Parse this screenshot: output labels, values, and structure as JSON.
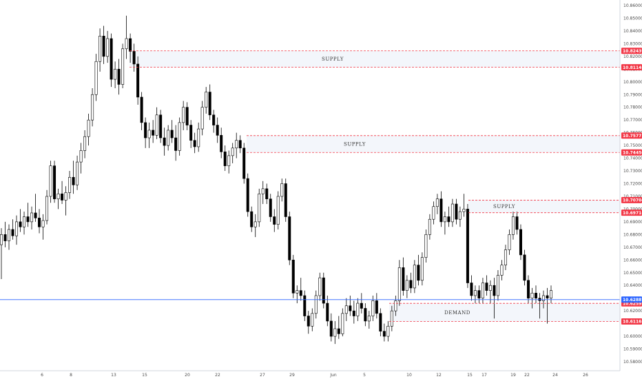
{
  "chart_data": {
    "type": "candlestick",
    "ylim": [
      10.576,
      10.866
    ],
    "y_ticks": [
      {
        "value": 10.86,
        "label": "10.86000"
      },
      {
        "value": 10.85,
        "label": "10.85000"
      },
      {
        "value": 10.84,
        "label": "10.84000"
      },
      {
        "value": 10.83,
        "label": "10.83000"
      },
      {
        "value": 10.82,
        "label": "10.82000"
      },
      {
        "value": 10.81,
        "label": "10.81000"
      },
      {
        "value": 10.8,
        "label": "10.80000"
      },
      {
        "value": 10.79,
        "label": "10.79000"
      },
      {
        "value": 10.78,
        "label": "10.78000"
      },
      {
        "value": 10.77,
        "label": "10.77000"
      },
      {
        "value": 10.76,
        "label": "10.76000"
      },
      {
        "value": 10.75,
        "label": "10.75000"
      },
      {
        "value": 10.74,
        "label": "10.74000"
      },
      {
        "value": 10.73,
        "label": "10.73000"
      },
      {
        "value": 10.72,
        "label": "10.72000"
      },
      {
        "value": 10.71,
        "label": "10.71000"
      },
      {
        "value": 10.7,
        "label": "10.70000"
      },
      {
        "value": 10.69,
        "label": "10.69000"
      },
      {
        "value": 10.68,
        "label": "10.68000"
      },
      {
        "value": 10.67,
        "label": "10.67000"
      },
      {
        "value": 10.66,
        "label": "10.66000"
      },
      {
        "value": 10.65,
        "label": "10.65000"
      },
      {
        "value": 10.64,
        "label": "10.64000"
      },
      {
        "value": 10.62,
        "label": "10.62000"
      },
      {
        "value": 10.6,
        "label": "10.60000"
      },
      {
        "value": 10.59,
        "label": "10.59000"
      },
      {
        "value": 10.58,
        "label": "10.58000"
      }
    ],
    "x_ticks": [
      "6",
      "8",
      "13",
      "15",
      "20",
      "22",
      "27",
      "29",
      "Jun",
      "5",
      "10",
      "12",
      "15",
      "17",
      "19",
      "22",
      "24",
      "26"
    ],
    "levels": [
      {
        "value": 10.82439,
        "label": "10.82439",
        "style": "dashed",
        "color": "#f23645"
      },
      {
        "value": 10.81148,
        "label": "10.81148",
        "style": "dashed",
        "color": "#f23645"
      },
      {
        "value": 10.75775,
        "label": "10.75775",
        "style": "dashed",
        "color": "#f23645"
      },
      {
        "value": 10.7445,
        "label": "10.74450",
        "style": "dashed",
        "color": "#f23645"
      },
      {
        "value": 10.70704,
        "label": "10.70704",
        "style": "dashed",
        "color": "#f23645"
      },
      {
        "value": 10.69716,
        "label": "10.69716",
        "style": "dashed",
        "color": "#f23645"
      },
      {
        "value": 10.62592,
        "label": "10.62592",
        "style": "dashed",
        "color": "#f23645"
      },
      {
        "value": 10.61168,
        "label": "10.61168",
        "style": "dashed",
        "color": "#f23645"
      },
      {
        "value": 10.62887,
        "label": "10.62887",
        "style": "solid",
        "color": "#2962ff"
      }
    ],
    "zones": [
      {
        "label": "SUPPLY",
        "top": 10.82439,
        "bottom": 10.81148
      },
      {
        "label": "SUPPLY",
        "top": 10.75775,
        "bottom": 10.7445
      },
      {
        "label": "SUPPLY",
        "top": 10.70704,
        "bottom": 10.69716
      },
      {
        "label": "DEMAND",
        "top": 10.62592,
        "bottom": 10.61168
      }
    ],
    "ohlc": [
      [
        10.672,
        10.685,
        10.645,
        10.68
      ],
      [
        10.68,
        10.69,
        10.67,
        10.675
      ],
      [
        10.675,
        10.688,
        10.668,
        10.684
      ],
      [
        10.684,
        10.692,
        10.676,
        10.679
      ],
      [
        10.679,
        10.695,
        10.672,
        10.69
      ],
      [
        10.69,
        10.7,
        10.682,
        10.686
      ],
      [
        10.686,
        10.698,
        10.68,
        10.694
      ],
      [
        10.694,
        10.705,
        10.686,
        10.69
      ],
      [
        10.69,
        10.702,
        10.684,
        10.697
      ],
      [
        10.697,
        10.712,
        10.69,
        10.693
      ],
      [
        10.693,
        10.7,
        10.681,
        10.686
      ],
      [
        10.686,
        10.696,
        10.676,
        10.691
      ],
      [
        10.691,
        10.715,
        10.688,
        10.71
      ],
      [
        10.71,
        10.738,
        10.705,
        10.734
      ],
      [
        10.734,
        10.738,
        10.705,
        10.708
      ],
      [
        10.708,
        10.716,
        10.7,
        10.712
      ],
      [
        10.712,
        10.722,
        10.704,
        10.707
      ],
      [
        10.707,
        10.718,
        10.695,
        10.713
      ],
      [
        10.713,
        10.73,
        10.708,
        10.725
      ],
      [
        10.725,
        10.738,
        10.712,
        10.719
      ],
      [
        10.719,
        10.742,
        10.715,
        10.737
      ],
      [
        10.737,
        10.752,
        10.728,
        10.746
      ],
      [
        10.746,
        10.762,
        10.74,
        10.757
      ],
      [
        10.757,
        10.775,
        10.75,
        10.77
      ],
      [
        10.77,
        10.795,
        10.765,
        10.79
      ],
      [
        10.79,
        10.822,
        10.785,
        10.816
      ],
      [
        10.816,
        10.842,
        10.808,
        10.836
      ],
      [
        10.836,
        10.844,
        10.814,
        10.82
      ],
      [
        10.82,
        10.84,
        10.815,
        10.834
      ],
      [
        10.834,
        10.838,
        10.796,
        10.802
      ],
      [
        10.802,
        10.816,
        10.795,
        10.81
      ],
      [
        10.81,
        10.818,
        10.79,
        10.798
      ],
      [
        10.798,
        10.83,
        10.795,
        10.826
      ],
      [
        10.826,
        10.852,
        10.818,
        10.834
      ],
      [
        10.834,
        10.838,
        10.815,
        10.824
      ],
      [
        10.824,
        10.83,
        10.808,
        10.814
      ],
      [
        10.814,
        10.82,
        10.782,
        10.788
      ],
      [
        10.788,
        10.792,
        10.762,
        10.768
      ],
      [
        10.768,
        10.772,
        10.748,
        10.756
      ],
      [
        10.756,
        10.768,
        10.748,
        10.762
      ],
      [
        10.762,
        10.77,
        10.752,
        10.758
      ],
      [
        10.758,
        10.78,
        10.755,
        10.774
      ],
      [
        10.774,
        10.778,
        10.752,
        10.756
      ],
      [
        10.756,
        10.764,
        10.742,
        10.75
      ],
      [
        10.75,
        10.766,
        10.746,
        10.762
      ],
      [
        10.762,
        10.77,
        10.752,
        10.756
      ],
      [
        10.756,
        10.766,
        10.738,
        10.746
      ],
      [
        10.746,
        10.772,
        10.742,
        10.768
      ],
      [
        10.768,
        10.785,
        10.762,
        10.78
      ],
      [
        10.78,
        10.784,
        10.762,
        10.766
      ],
      [
        10.766,
        10.77,
        10.748,
        10.754
      ],
      [
        10.754,
        10.76,
        10.744,
        10.749
      ],
      [
        10.749,
        10.768,
        10.745,
        10.763
      ],
      [
        10.763,
        10.785,
        10.758,
        10.78
      ],
      [
        10.78,
        10.796,
        10.775,
        10.792
      ],
      [
        10.792,
        10.798,
        10.77,
        10.774
      ],
      [
        10.774,
        10.778,
        10.76,
        10.766
      ],
      [
        10.766,
        10.772,
        10.752,
        10.758
      ],
      [
        10.758,
        10.764,
        10.74,
        10.745
      ],
      [
        10.745,
        10.75,
        10.73,
        10.734
      ],
      [
        10.734,
        10.746,
        10.728,
        10.742
      ],
      [
        10.742,
        10.752,
        10.736,
        10.748
      ],
      [
        10.748,
        10.76,
        10.74,
        10.754
      ],
      [
        10.754,
        10.758,
        10.744,
        10.748
      ],
      [
        10.748,
        10.752,
        10.72,
        10.724
      ],
      [
        10.724,
        10.728,
        10.694,
        10.698
      ],
      [
        10.698,
        10.702,
        10.682,
        10.686
      ],
      [
        10.686,
        10.696,
        10.678,
        10.69
      ],
      [
        10.69,
        10.716,
        10.686,
        10.712
      ],
      [
        10.712,
        10.722,
        10.704,
        10.716
      ],
      [
        10.716,
        10.72,
        10.704,
        10.708
      ],
      [
        10.708,
        10.712,
        10.69,
        10.694
      ],
      [
        10.694,
        10.7,
        10.682,
        10.688
      ],
      [
        10.688,
        10.714,
        10.684,
        10.71
      ],
      [
        10.71,
        10.724,
        10.706,
        10.72
      ],
      [
        10.72,
        10.724,
        10.69,
        10.694
      ],
      [
        10.694,
        10.698,
        10.656,
        10.66
      ],
      [
        10.66,
        10.664,
        10.63,
        10.634
      ],
      [
        10.634,
        10.64,
        10.626,
        10.636
      ],
      [
        10.636,
        10.646,
        10.628,
        10.632
      ],
      [
        10.632,
        10.636,
        10.612,
        10.616
      ],
      [
        10.616,
        10.62,
        10.602,
        10.608
      ],
      [
        10.608,
        10.622,
        10.604,
        10.618
      ],
      [
        10.618,
        10.636,
        10.614,
        10.632
      ],
      [
        10.632,
        10.65,
        10.628,
        10.646
      ],
      [
        10.646,
        10.65,
        10.622,
        10.626
      ],
      [
        10.626,
        10.632,
        10.608,
        10.612
      ],
      [
        10.612,
        10.618,
        10.596,
        10.6
      ],
      [
        10.6,
        10.612,
        10.594,
        10.606
      ],
      [
        10.606,
        10.616,
        10.598,
        10.602
      ],
      [
        10.602,
        10.622,
        10.6,
        10.618
      ],
      [
        10.618,
        10.63,
        10.612,
        10.624
      ],
      [
        10.624,
        10.632,
        10.616,
        10.62
      ],
      [
        10.62,
        10.628,
        10.61,
        10.616
      ],
      [
        10.616,
        10.63,
        10.612,
        10.626
      ],
      [
        10.626,
        10.634,
        10.618,
        10.622
      ],
      [
        10.622,
        10.626,
        10.608,
        10.612
      ],
      [
        10.612,
        10.62,
        10.606,
        10.616
      ],
      [
        10.616,
        10.632,
        10.612,
        10.628
      ],
      [
        10.628,
        10.634,
        10.614,
        10.618
      ],
      [
        10.618,
        10.622,
        10.6,
        10.604
      ],
      [
        10.604,
        10.61,
        10.596,
        10.6
      ],
      [
        10.6,
        10.612,
        10.596,
        10.608
      ],
      [
        10.608,
        10.624,
        10.604,
        10.62
      ],
      [
        10.62,
        10.632,
        10.616,
        10.628
      ],
      [
        10.628,
        10.66,
        10.624,
        10.654
      ],
      [
        10.654,
        10.662,
        10.632,
        10.636
      ],
      [
        10.636,
        10.648,
        10.63,
        10.644
      ],
      [
        10.644,
        10.65,
        10.634,
        10.638
      ],
      [
        10.638,
        10.66,
        10.634,
        10.656
      ],
      [
        10.656,
        10.664,
        10.64,
        10.644
      ],
      [
        10.644,
        10.666,
        10.64,
        10.662
      ],
      [
        10.662,
        10.684,
        10.658,
        10.68
      ],
      [
        10.68,
        10.696,
        10.676,
        10.692
      ],
      [
        10.692,
        10.706,
        10.688,
        10.702
      ],
      [
        10.702,
        10.712,
        10.696,
        10.708
      ],
      [
        10.708,
        10.714,
        10.686,
        10.69
      ],
      [
        10.69,
        10.698,
        10.68,
        10.694
      ],
      [
        10.694,
        10.702,
        10.686,
        10.69
      ],
      [
        10.69,
        10.708,
        10.686,
        10.704
      ],
      [
        10.704,
        10.708,
        10.688,
        10.692
      ],
      [
        10.692,
        10.702,
        10.686,
        10.698
      ],
      [
        10.698,
        10.712,
        10.694,
        10.7
      ],
      [
        10.7,
        10.704,
        10.638,
        10.642
      ],
      [
        10.642,
        10.648,
        10.628,
        10.632
      ],
      [
        10.632,
        10.64,
        10.626,
        10.636
      ],
      [
        10.636,
        10.64,
        10.626,
        10.63
      ],
      [
        10.63,
        10.646,
        10.626,
        10.642
      ],
      [
        10.642,
        10.648,
        10.632,
        10.636
      ],
      [
        10.636,
        10.644,
        10.626,
        10.64
      ],
      [
        10.64,
        10.646,
        10.614,
        10.632
      ],
      [
        10.632,
        10.652,
        10.628,
        10.648
      ],
      [
        10.648,
        10.66,
        10.644,
        10.656
      ],
      [
        10.656,
        10.672,
        10.652,
        10.668
      ],
      [
        10.668,
        10.684,
        10.664,
        10.68
      ],
      [
        10.68,
        10.698,
        10.676,
        10.694
      ],
      [
        10.694,
        10.698,
        10.68,
        10.684
      ],
      [
        10.684,
        10.688,
        10.66,
        10.664
      ],
      [
        10.664,
        10.668,
        10.64,
        10.644
      ],
      [
        10.644,
        10.648,
        10.626,
        10.63
      ],
      [
        10.63,
        10.638,
        10.622,
        10.634
      ],
      [
        10.634,
        10.64,
        10.626,
        10.63
      ],
      [
        10.63,
        10.634,
        10.614,
        10.628
      ],
      [
        10.628,
        10.636,
        10.622,
        10.632
      ],
      [
        10.632,
        10.638,
        10.61,
        10.63
      ],
      [
        10.63,
        10.64,
        10.626,
        10.636
      ]
    ]
  }
}
